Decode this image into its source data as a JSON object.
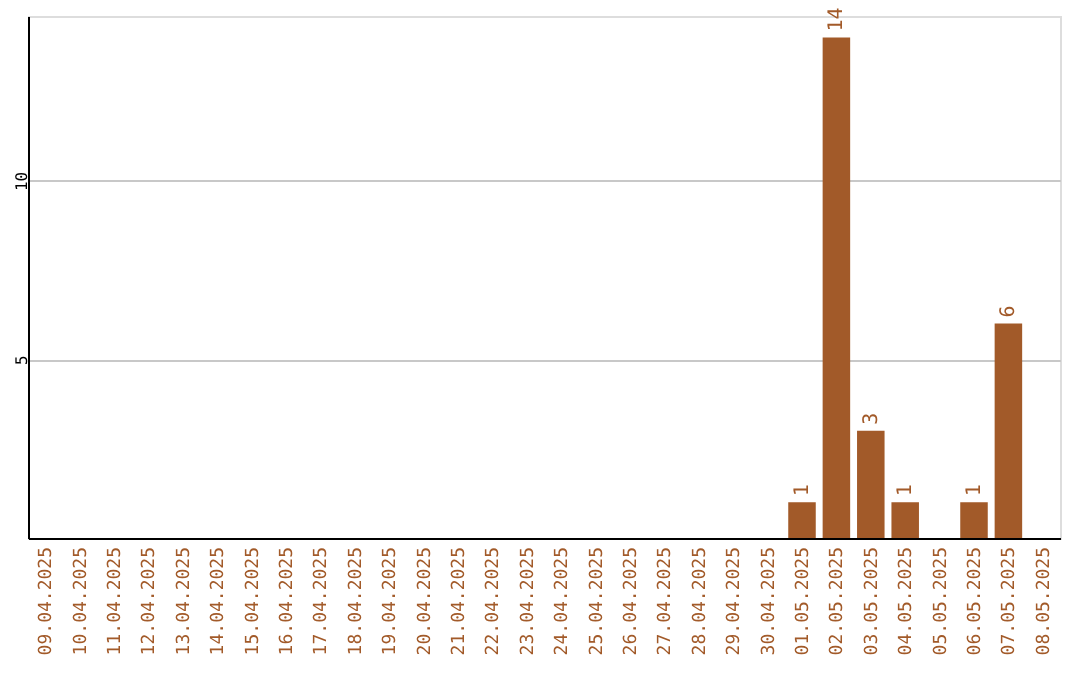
{
  "chart_data": {
    "type": "bar",
    "categories": [
      "09.04.2025",
      "10.04.2025",
      "11.04.2025",
      "12.04.2025",
      "13.04.2025",
      "14.04.2025",
      "15.04.2025",
      "16.04.2025",
      "17.04.2025",
      "18.04.2025",
      "19.04.2025",
      "20.04.2025",
      "21.04.2025",
      "22.04.2025",
      "23.04.2025",
      "24.04.2025",
      "25.04.2025",
      "26.04.2025",
      "27.04.2025",
      "28.04.2025",
      "29.04.2025",
      "30.04.2025",
      "01.05.2025",
      "02.05.2025",
      "03.05.2025",
      "04.05.2025",
      "05.05.2025",
      "06.05.2025",
      "07.05.2025",
      "08.05.2025"
    ],
    "values": [
      0,
      0,
      0,
      0,
      0,
      0,
      0,
      0,
      0,
      0,
      0,
      0,
      0,
      0,
      0,
      0,
      0,
      0,
      0,
      0,
      0,
      0,
      1,
      14,
      3,
      1,
      0,
      1,
      6,
      0
    ],
    "value_labels": [
      null,
      null,
      null,
      null,
      null,
      null,
      null,
      null,
      null,
      null,
      null,
      null,
      null,
      null,
      null,
      null,
      null,
      null,
      null,
      null,
      null,
      null,
      "1",
      "14",
      "3",
      "1",
      null,
      "1",
      "6",
      null
    ],
    "color": "#a25a29",
    "ylim": [
      0,
      14.6
    ],
    "yticks": [
      5,
      10
    ],
    "grid": "y"
  }
}
